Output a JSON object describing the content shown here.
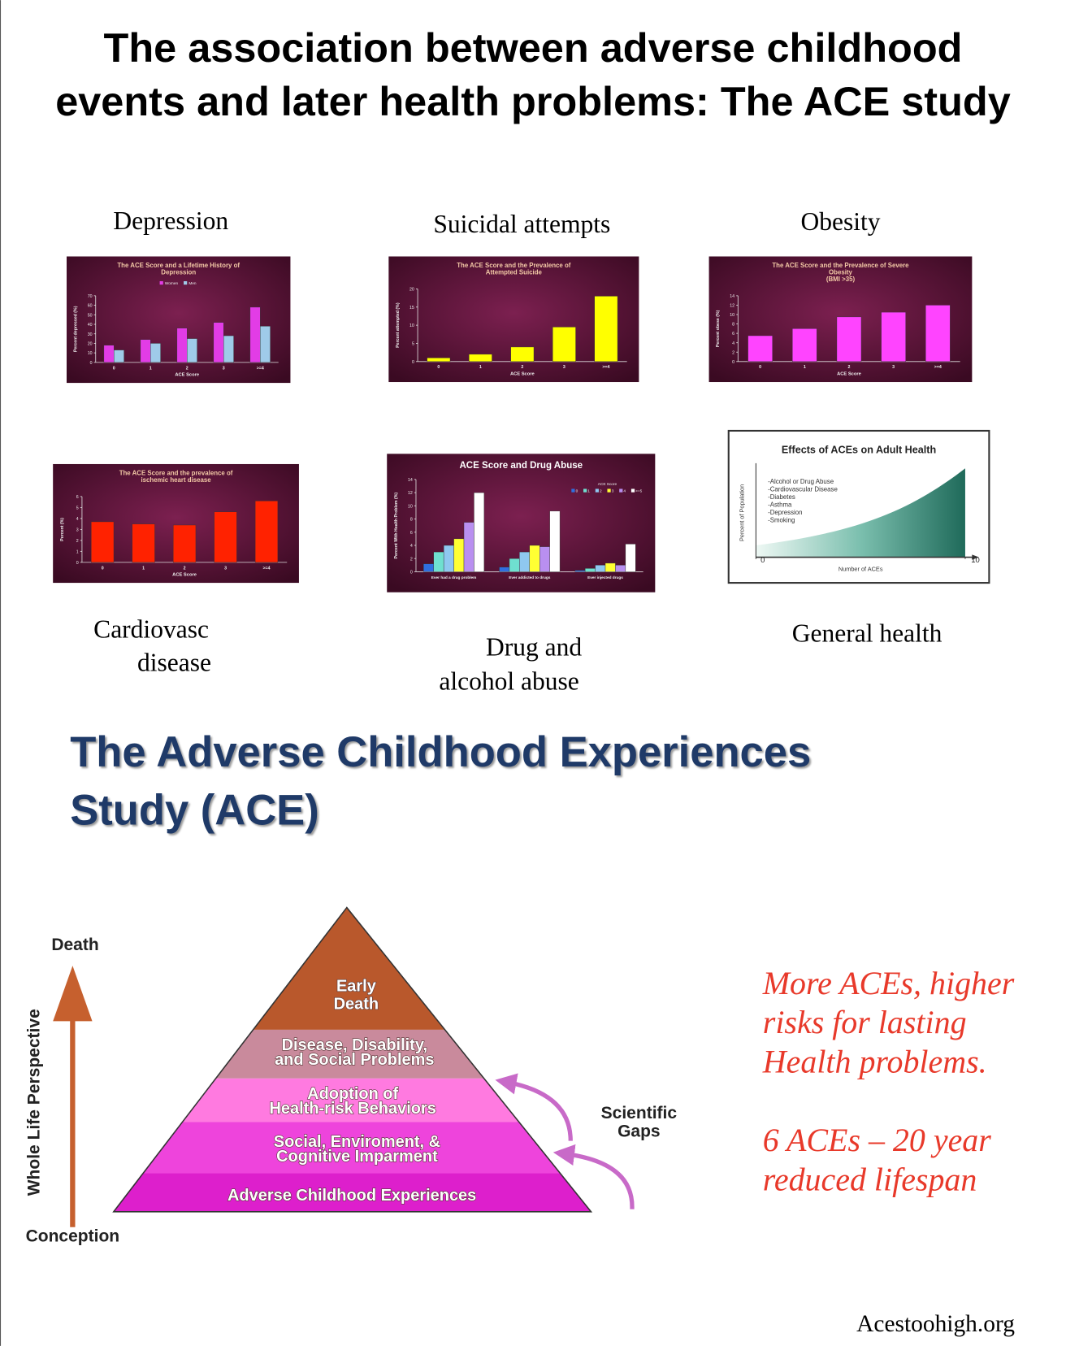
{
  "header": {
    "title": [
      "The association between adverse childhood",
      "events and later health problems: The ACE study"
    ]
  },
  "chart_data": [
    {
      "type": "bar",
      "caption": [
        "Depression"
      ],
      "title": [
        "The ACE Score and a Lifetime History of",
        "Depression"
      ],
      "categories": [
        "0",
        "1",
        "2",
        "3",
        ">=4"
      ],
      "x_label": "ACE Score",
      "y_label": "Percent depressed (%)",
      "series": [
        {
          "name": "Women",
          "color": "#e23ce6",
          "values": [
            18,
            24,
            36,
            42,
            58
          ]
        },
        {
          "name": "Men",
          "color": "#9fcbe9",
          "values": [
            13,
            20,
            25,
            28,
            38
          ]
        }
      ],
      "ylim": [
        0,
        70
      ],
      "yticks": [
        0,
        10,
        20,
        30,
        40,
        50,
        60,
        70
      ],
      "legend": "top"
    },
    {
      "type": "bar",
      "caption": [
        "Suicidal attempts"
      ],
      "title": [
        "The ACE Score and the Prevalence of",
        "Attempted Suicide"
      ],
      "categories": [
        "0",
        "1",
        "2",
        "3",
        ">=4"
      ],
      "x_label": "ACE Score",
      "y_label": "Percent attempted (%)",
      "values": [
        1,
        2,
        4,
        9.5,
        18
      ],
      "color": "#ffff00",
      "ylim": [
        0,
        20
      ],
      "yticks": [
        0,
        5,
        10,
        15,
        20
      ]
    },
    {
      "type": "bar",
      "caption": [
        "Obesity"
      ],
      "title": [
        "The ACE Score and the Prevalence of Severe",
        "Obesity",
        "(BMI >35)"
      ],
      "categories": [
        "0",
        "1",
        "2",
        "3",
        ">=4"
      ],
      "x_label": "ACE Score",
      "y_label": "Percent obese (%)",
      "values": [
        5.5,
        7,
        9.5,
        10.5,
        12
      ],
      "color": "#ff44ff",
      "ylim": [
        0,
        14
      ],
      "yticks": [
        0,
        2,
        4,
        6,
        8,
        10,
        12,
        14
      ]
    },
    {
      "type": "bar",
      "caption": [
        "Cardiovasc",
        "disease"
      ],
      "title": [
        "The ACE Score and the prevalence of",
        "ischemic heart disease"
      ],
      "categories": [
        "0",
        "1",
        "2",
        "3",
        ">=4"
      ],
      "x_label": "ACE Score",
      "y_label": "Percent (%)",
      "values": [
        3.7,
        3.5,
        3.4,
        4.6,
        5.6
      ],
      "color": "#ff2200",
      "ylim": [
        0,
        6
      ],
      "yticks": [
        0,
        1,
        2,
        3,
        4,
        5,
        6
      ]
    },
    {
      "type": "bar",
      "caption": [
        "Drug and",
        "alcohol abuse"
      ],
      "title": [
        "ACE Score and Drug Abuse"
      ],
      "categories": [
        "Ever had a drug problem",
        "Ever addicted to drugs",
        "Ever injected drugs"
      ],
      "y_label": "Percent With Health Problem (%)",
      "legend_title": "ACE Score",
      "series": [
        {
          "name": "0",
          "color": "#2f6fe0",
          "values": [
            1.2,
            0.7,
            0.2
          ]
        },
        {
          "name": "1",
          "color": "#6fe0d0",
          "values": [
            3,
            2,
            0.5
          ]
        },
        {
          "name": "2",
          "color": "#8fc8f0",
          "values": [
            4,
            3,
            1
          ]
        },
        {
          "name": "3",
          "color": "#ffff33",
          "values": [
            5,
            4,
            1.3
          ]
        },
        {
          "name": "4",
          "color": "#b98ff0",
          "values": [
            7.5,
            3.8,
            1
          ]
        },
        {
          "name": ">=5",
          "color": "#ffffff",
          "values": [
            12,
            9.2,
            4.2
          ]
        }
      ],
      "ylim": [
        0,
        14
      ],
      "yticks": [
        0,
        2,
        4,
        6,
        8,
        10,
        12,
        14
      ],
      "legend": "upper right"
    },
    {
      "type": "area",
      "caption": [
        "General health"
      ],
      "title": [
        "Effects of ACEs on Adult Health"
      ],
      "x_label": "Number of ACEs",
      "y_label": "Percent of Population",
      "items": [
        "-Alcohol or Drug Abuse",
        "-Cardiovascular Disease",
        "-Diabetes",
        "-Asthma",
        "-Depression",
        "-Smoking"
      ],
      "xlim": [
        0,
        10
      ],
      "xticks": [
        0,
        10
      ],
      "color": "#1f6a5a"
    }
  ],
  "study": {
    "title": [
      "The Adverse Childhood Experiences",
      "Study (ACE)"
    ],
    "axis_top": "Death",
    "axis_bottom": "Conception",
    "axis_label": "Whole Life Perspective",
    "levels": [
      [
        "Early",
        "Death"
      ],
      [
        "Disease, Disability,",
        "and Social Problems"
      ],
      [
        "Adoption of",
        "Health-risk Behaviors"
      ],
      [
        "Social, Enviroment, &",
        "Cognitive Imparment"
      ],
      [
        "Adverse Childhood Experiences"
      ]
    ],
    "gaps_label": [
      "Scientific",
      "Gaps"
    ]
  },
  "notes": {
    "risk": [
      "More ACEs, higher",
      "risks for lasting",
      "Health problems."
    ],
    "lifespan": [
      "6 ACEs – 20 year",
      "reduced lifespan"
    ]
  },
  "footer": {
    "source": "Acestoohigh.org"
  }
}
